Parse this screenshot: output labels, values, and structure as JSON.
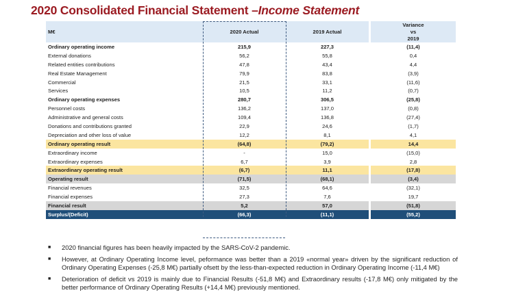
{
  "title": {
    "main": "2020 Consolidated Financial Statement –",
    "italic": "Income Statement"
  },
  "table": {
    "headers": [
      "M€",
      "2020 Actual",
      "2019 Actual"
    ],
    "variance_header": [
      "Variance",
      "vs",
      "2019"
    ],
    "rows": [
      {
        "label": "Ordinary operating income",
        "a2020": "215,9",
        "a2019": "227,3",
        "var": "(11,4)",
        "style": "bold"
      },
      {
        "label": "External donations",
        "a2020": "56,2",
        "a2019": "55,8",
        "var": "0,4",
        "style": ""
      },
      {
        "label": "Related entities contributions",
        "a2020": "47,8",
        "a2019": "43,4",
        "var": "4,4",
        "style": ""
      },
      {
        "label": "Real Estate Management",
        "a2020": "79,9",
        "a2019": "83,8",
        "var": "(3,9)",
        "style": ""
      },
      {
        "label": "Commercial",
        "a2020": "21,5",
        "a2019": "33,1",
        "var": "(11,6)",
        "style": ""
      },
      {
        "label": "Services",
        "a2020": "10,5",
        "a2019": "11,2",
        "var": "(0,7)",
        "style": ""
      },
      {
        "label": "Ordinary operating expenses",
        "a2020": "280,7",
        "a2019": "306,5",
        "var": "(25,8)",
        "style": "bold"
      },
      {
        "label": "Personnel costs",
        "a2020": "136,2",
        "a2019": "137,0",
        "var": "(0,8)",
        "style": ""
      },
      {
        "label": "Administrative and general costs",
        "a2020": "109,4",
        "a2019": "136,8",
        "var": "(27,4)",
        "style": ""
      },
      {
        "label": "Donations and contributions granted",
        "a2020": "22,9",
        "a2019": "24,6",
        "var": "(1,7)",
        "style": ""
      },
      {
        "label": "Depreciation and other loss of value",
        "a2020": "12,2",
        "a2019": "8,1",
        "var": "4,1",
        "style": ""
      },
      {
        "label": "Ordinary operating result",
        "a2020": "(64,8)",
        "a2019": "(79,2)",
        "var": "14,4",
        "style": "bold yellow"
      },
      {
        "label": "Extraordinary income",
        "a2020": "-",
        "a2019": "15,0",
        "var": "(15,0)",
        "style": ""
      },
      {
        "label": "Extraordinary expenses",
        "a2020": "6,7",
        "a2019": "3,9",
        "var": "2,8",
        "style": ""
      },
      {
        "label": "Extraordinary operating result",
        "a2020": "(6,7)",
        "a2019": "11,1",
        "var": "(17,8)",
        "style": "bold yellow"
      },
      {
        "label": "Operating result",
        "a2020": "(71,5)",
        "a2019": "(68,1)",
        "var": "(3,4)",
        "style": "bold gray"
      },
      {
        "label": "Financial revenues",
        "a2020": "32,5",
        "a2019": "64,6",
        "var": "(32,1)",
        "style": ""
      },
      {
        "label": "Financial expenses",
        "a2020": "27,3",
        "a2019": "7,6",
        "var": "19,7",
        "style": ""
      },
      {
        "label": "Financial result",
        "a2020": "5,2",
        "a2019": "57,0",
        "var": "(51,8)",
        "style": "bold gray"
      },
      {
        "label": "Surplus/(Deficit)",
        "a2020": "(66,3)",
        "a2019": "(11,1)",
        "var": "(55,2)",
        "style": "bold blue"
      }
    ]
  },
  "bullets": [
    "2020 financial figures has been heavily impacted by the SARS-CoV-2 pandemic.",
    "However, at Ordinary Operating Income level, peformance was better than a 2019 «normal year» driven by the significant reduction of Ordinary Operating Expenses (-25,8 M€) partially ofsett by the less-than-expected reduction in Ordinary Operating Income (-11,4 M€)",
    "Deterioration of deficit vs 2019 is mainly due to Financial Results (-51,8 M€) and Extraordinary results (-17,8 M€) only mitigated by the better performance of Ordinary Operating Results (+14,4 M€) previously mentioned."
  ],
  "colors": {
    "title": "#9b1b22",
    "header_bg": "#dde9f5",
    "yellow": "#fbe5a0",
    "gray": "#d6d6d6",
    "blue": "#1f4e79"
  }
}
